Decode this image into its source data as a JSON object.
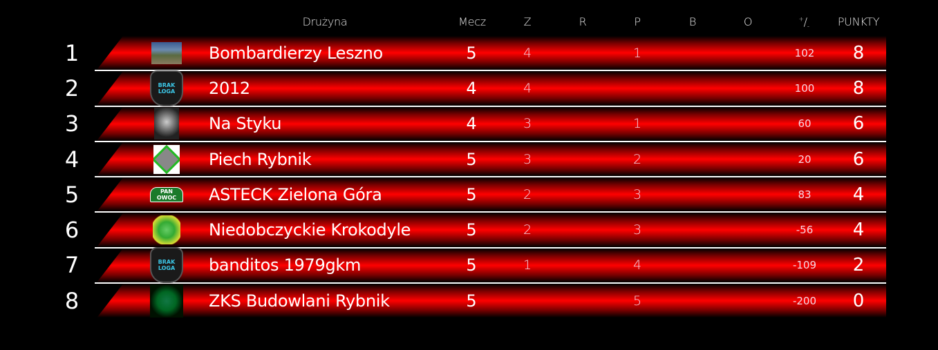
{
  "header": {
    "team": "Drużyna",
    "mecz": "Mecz",
    "z": "Z",
    "r": "R",
    "p": "P",
    "b": "B",
    "o": "O",
    "diff_plus": "+",
    "diff_slash": "/",
    "diff_minus": "-",
    "points": "PUNKTY"
  },
  "colors": {
    "band": "#ff0000",
    "separator": "#ffffff",
    "background": "#000000"
  },
  "teams": [
    {
      "rank": "1",
      "name": "Bombardierzy Leszno",
      "logo": "speedway-rider-photo",
      "mecz": "5",
      "z": "4",
      "r": "",
      "p": "1",
      "b": "",
      "o": "",
      "diff": "102",
      "points": "8"
    },
    {
      "rank": "2",
      "name": "2012",
      "logo": "brak-loga-shield",
      "logo_text": "BRAK LOGA",
      "mecz": "4",
      "z": "4",
      "r": "",
      "p": "",
      "b": "",
      "o": "",
      "diff": "100",
      "points": "8"
    },
    {
      "rank": "3",
      "name": "Na Styku",
      "logo": "skull",
      "mecz": "4",
      "z": "3",
      "r": "",
      "p": "1",
      "b": "",
      "o": "",
      "diff": "60",
      "points": "6"
    },
    {
      "rank": "4",
      "name": "Piech Rybnik",
      "logo": "shark-diamond",
      "mecz": "5",
      "z": "3",
      "r": "",
      "p": "2",
      "b": "",
      "o": "",
      "diff": "20",
      "points": "6"
    },
    {
      "rank": "5",
      "name": "ASTECK Zielona Góra",
      "logo": "pan-owoc",
      "logo_text": "PAN OWOC",
      "mecz": "5",
      "z": "2",
      "r": "",
      "p": "3",
      "b": "",
      "o": "",
      "diff": "83",
      "points": "4"
    },
    {
      "rank": "6",
      "name": "Niedobczyckie Krokodyle",
      "logo": "crocodile",
      "mecz": "5",
      "z": "2",
      "r": "",
      "p": "3",
      "b": "",
      "o": "",
      "diff": "-56",
      "points": "4"
    },
    {
      "rank": "7",
      "name": "banditos 1979gkm",
      "logo": "brak-loga-shield",
      "logo_text": "BRAK LOGA",
      "mecz": "5",
      "z": "1",
      "r": "",
      "p": "4",
      "b": "",
      "o": "",
      "diff": "-109",
      "points": "2"
    },
    {
      "rank": "8",
      "name": "ZKS Budowlani Rybnik",
      "logo": "green-emblem",
      "mecz": "5",
      "z": "",
      "r": "",
      "p": "5",
      "b": "",
      "o": "",
      "diff": "-200",
      "points": "0"
    }
  ]
}
